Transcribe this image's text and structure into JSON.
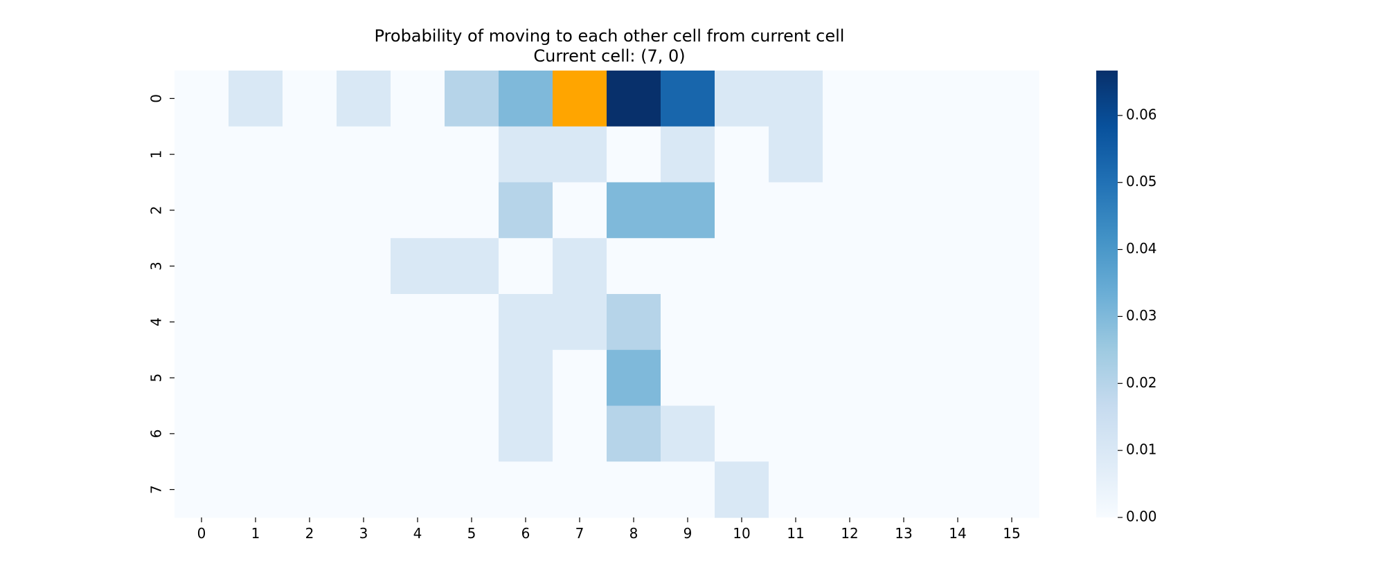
{
  "chart_data": {
    "type": "heatmap",
    "title": "Probability of moving to each other cell from current cell",
    "subtitle": "Current cell: (7, 0)",
    "xlabel": "",
    "ylabel": "",
    "x_ticks": [
      "0",
      "1",
      "2",
      "3",
      "4",
      "5",
      "6",
      "7",
      "8",
      "9",
      "10",
      "11",
      "12",
      "13",
      "14",
      "15"
    ],
    "y_ticks": [
      "0",
      "1",
      "2",
      "3",
      "4",
      "5",
      "6",
      "7"
    ],
    "colormap": "Blues",
    "colorbar_range": [
      0,
      0.0667
    ],
    "colorbar_ticks": [
      "0.00",
      "0.01",
      "0.02",
      "0.03",
      "0.04",
      "0.05",
      "0.06"
    ],
    "current_cell": {
      "x": 7,
      "y": 0,
      "color": "#ffa500"
    },
    "values": [
      [
        0,
        0.01,
        0,
        0.01,
        0,
        0.02,
        0.03,
        0,
        0.0667,
        0.053,
        0.01,
        0.01,
        0,
        0,
        0,
        0
      ],
      [
        0,
        0,
        0,
        0,
        0,
        0,
        0.01,
        0.01,
        0,
        0.01,
        0,
        0.01,
        0,
        0,
        0,
        0
      ],
      [
        0,
        0,
        0,
        0,
        0,
        0,
        0.02,
        0,
        0.03,
        0.03,
        0,
        0,
        0,
        0,
        0,
        0
      ],
      [
        0,
        0,
        0,
        0,
        0.01,
        0.01,
        0,
        0.01,
        0,
        0,
        0,
        0,
        0,
        0,
        0,
        0
      ],
      [
        0,
        0,
        0,
        0,
        0,
        0,
        0.01,
        0.01,
        0.02,
        0,
        0,
        0,
        0,
        0,
        0,
        0
      ],
      [
        0,
        0,
        0,
        0,
        0,
        0,
        0.01,
        0,
        0.03,
        0,
        0,
        0,
        0,
        0,
        0,
        0
      ],
      [
        0,
        0,
        0,
        0,
        0,
        0,
        0.01,
        0,
        0.02,
        0.01,
        0,
        0,
        0,
        0,
        0,
        0
      ],
      [
        0,
        0,
        0,
        0,
        0,
        0,
        0,
        0,
        0,
        0,
        0.01,
        0,
        0,
        0,
        0,
        0
      ]
    ]
  }
}
